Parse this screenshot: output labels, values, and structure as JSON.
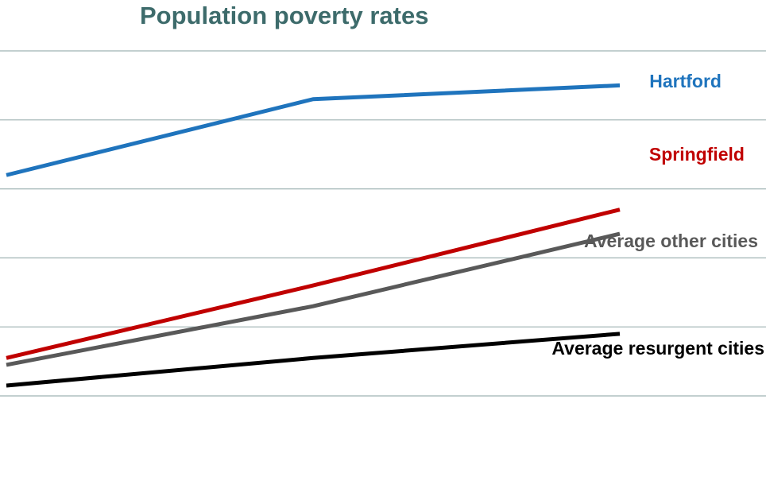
{
  "chart_data": {
    "type": "line",
    "title": "Population poverty rates",
    "x": [
      0,
      1,
      2
    ],
    "ylim": [
      0,
      5
    ],
    "grid": true,
    "title_color": "#3d6b6b",
    "grid_color": "#9fb3b3",
    "series": [
      {
        "name": "Hartford",
        "values": [
          3.2,
          4.3,
          4.5
        ],
        "color": "#1f74bd"
      },
      {
        "name": "Springfield",
        "values": [
          0.55,
          1.6,
          2.7
        ],
        "color": "#c00000"
      },
      {
        "name": "Average other cities",
        "values": [
          0.45,
          1.3,
          2.35
        ],
        "color": "#595959"
      },
      {
        "name": "Average resurgent cities",
        "values": [
          0.15,
          0.55,
          0.9
        ],
        "color": "#000000"
      }
    ]
  }
}
